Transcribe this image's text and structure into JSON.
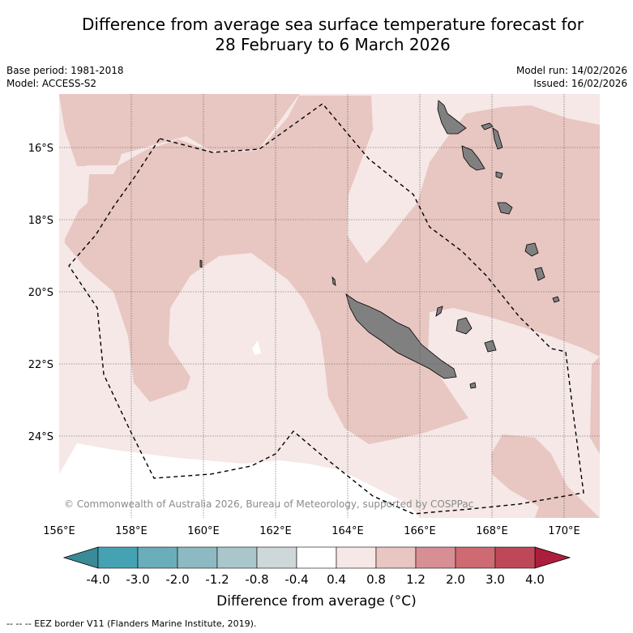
{
  "header": {
    "title_line1": "Difference from average sea surface temperature forecast for",
    "title_line2": "28 February to 6 March 2026",
    "base_period": "Base period: 1981-2018",
    "model": "Model: ACCESS-S2",
    "model_run": "Model run: 14/02/2026",
    "issued": "Issued: 16/02/2026"
  },
  "map": {
    "lon_ticks": [
      "156°E",
      "158°E",
      "160°E",
      "162°E",
      "164°E",
      "166°E",
      "168°E",
      "170°E"
    ],
    "lat_ticks": [
      "16°S",
      "18°S",
      "20°S",
      "22°S",
      "24°S"
    ],
    "copyright": "© Commonwealth of Australia 2026, Bureau of Meteorology, supported by COSPPac",
    "colors": {
      "band_04_08": "#f5e8e6",
      "band_08_12": "#e8c6c1",
      "band_n04_04": "#ffffff",
      "land": "#808080",
      "eez": "#000000"
    }
  },
  "colorbar": {
    "tick_labels": [
      "-4.0",
      "-3.0",
      "-2.0",
      "-1.2",
      "-0.8",
      "-0.4",
      "0.4",
      "0.8",
      "1.2",
      "2.0",
      "3.0",
      "4.0"
    ],
    "segment_colors": [
      "#45a2b3",
      "#6aadbb",
      "#8db9c3",
      "#a9c7ca",
      "#cfd8d9",
      "#ffffff",
      "#f5e8e6",
      "#e8c6c1",
      "#d88e95",
      "#cd6a72",
      "#be4858"
    ],
    "under_color": "#3a8a98",
    "over_color": "#ad1e3e",
    "label": "Difference from average (°C)"
  },
  "legend": {
    "eez_text": "--  --  -- EEZ border V11 (Flanders Marine Institute, 2019)."
  }
}
